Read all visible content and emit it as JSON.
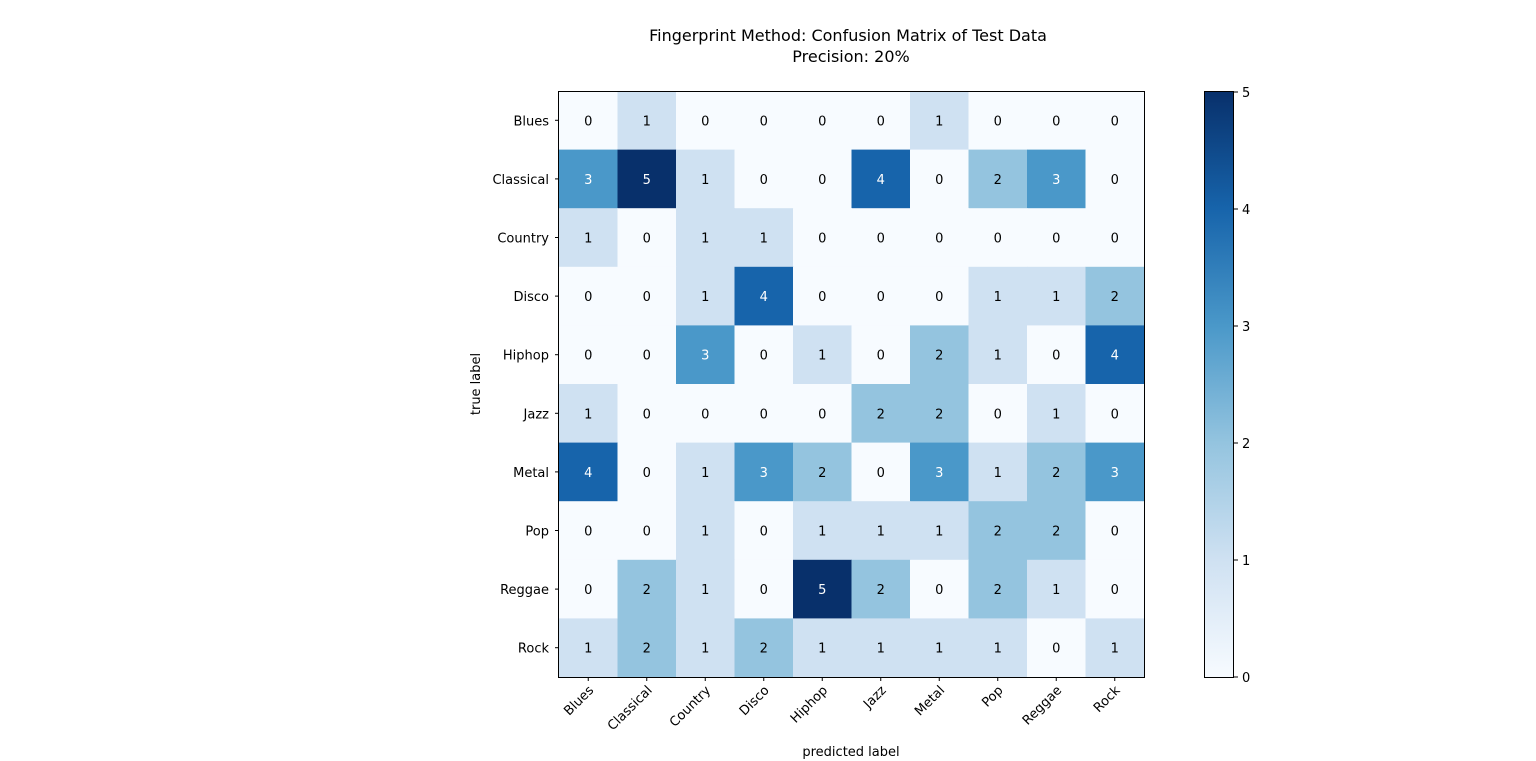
{
  "chart_data": {
    "type": "heatmap",
    "title": "Fingerprint Method: Confusion Matrix of Test Data",
    "subtitle": "Precision: 20%",
    "xlabel": "predicted label",
    "ylabel": "true label",
    "x_categories": [
      "Blues",
      "Classical",
      "Country",
      "Disco",
      "Hiphop",
      "Jazz",
      "Metal",
      "Pop",
      "Reggae",
      "Rock"
    ],
    "y_categories": [
      "Blues",
      "Classical",
      "Country",
      "Disco",
      "Hiphop",
      "Jazz",
      "Metal",
      "Pop",
      "Reggae",
      "Rock"
    ],
    "values": [
      [
        0,
        1,
        0,
        0,
        0,
        0,
        1,
        0,
        0,
        0
      ],
      [
        3,
        5,
        1,
        0,
        0,
        4,
        0,
        2,
        3,
        0
      ],
      [
        1,
        0,
        1,
        1,
        0,
        0,
        0,
        0,
        0,
        0
      ],
      [
        0,
        0,
        1,
        4,
        0,
        0,
        0,
        1,
        1,
        2
      ],
      [
        0,
        0,
        3,
        0,
        1,
        0,
        2,
        1,
        0,
        4
      ],
      [
        1,
        0,
        0,
        0,
        0,
        2,
        2,
        0,
        1,
        0
      ],
      [
        4,
        0,
        1,
        3,
        2,
        0,
        3,
        1,
        2,
        3
      ],
      [
        0,
        0,
        1,
        0,
        1,
        1,
        1,
        2,
        2,
        0
      ],
      [
        0,
        2,
        1,
        0,
        5,
        2,
        0,
        2,
        1,
        0
      ],
      [
        1,
        2,
        1,
        2,
        1,
        1,
        1,
        1,
        0,
        1
      ]
    ],
    "colormap": "Blues",
    "color_range": [
      0,
      5
    ],
    "colorbar_ticks": [
      0,
      1,
      2,
      3,
      4,
      5
    ],
    "colors": {
      "0": "#f7fbff",
      "1": "#cfe1f2",
      "2": "#94c4df",
      "3": "#4a98c9",
      "4": "#1764ab",
      "5": "#08306b"
    },
    "legend": "colorbar-right"
  }
}
